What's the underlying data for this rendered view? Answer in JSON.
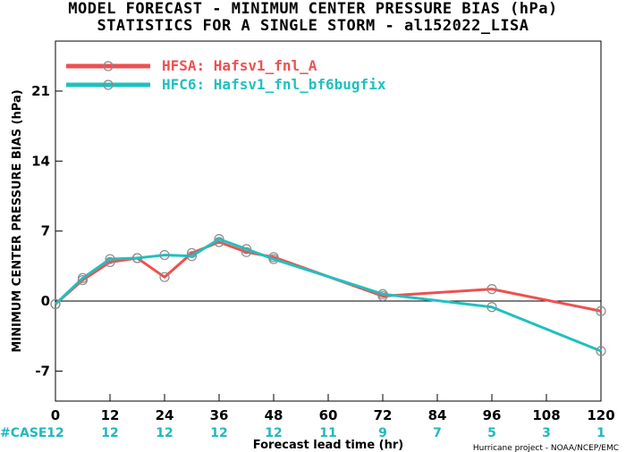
{
  "chart_data": {
    "type": "line",
    "title": "MODEL FORECAST - MINIMUM CENTER PRESSURE BIAS (hPa)",
    "subtitle": "STATISTICS FOR A SINGLE STORM - al152022_LISA",
    "xlabel": "Forecast lead time (hr)",
    "ylabel": "MINIMUM CENTER PRESSURE BIAS (hPa)",
    "xlim": [
      0,
      120
    ],
    "ylim": [
      -10,
      26
    ],
    "x_ticks": [
      0,
      12,
      24,
      36,
      48,
      60,
      72,
      84,
      96,
      108,
      120
    ],
    "y_ticks": [
      -7,
      0,
      7,
      14,
      21
    ],
    "grid": false,
    "legend_position": "top-left",
    "series": [
      {
        "name": "HFSA: Hafsv1_fnl_A",
        "color": "#ee5050",
        "x": [
          0,
          6,
          12,
          18,
          24,
          30,
          36,
          42,
          48,
          72,
          96,
          120
        ],
        "y": [
          -0.3,
          2.1,
          3.9,
          4.3,
          2.4,
          4.8,
          5.9,
          4.9,
          4.4,
          0.5,
          1.2,
          -1.0
        ]
      },
      {
        "name": "HFC6: Hafsv1_fnl_bf6bugfix",
        "color": "#20c0c0",
        "x": [
          0,
          6,
          12,
          18,
          24,
          30,
          36,
          42,
          48,
          72,
          96,
          120
        ],
        "y": [
          -0.3,
          2.3,
          4.2,
          4.3,
          4.6,
          4.5,
          6.2,
          5.2,
          4.2,
          0.7,
          -0.6,
          -5.0
        ]
      }
    ],
    "case_label": "#CASE",
    "case_counts": [
      {
        "x": 0,
        "n": "12"
      },
      {
        "x": 12,
        "n": "12"
      },
      {
        "x": 24,
        "n": "12"
      },
      {
        "x": 36,
        "n": "12"
      },
      {
        "x": 48,
        "n": "12"
      },
      {
        "x": 60,
        "n": "11"
      },
      {
        "x": 72,
        "n": "9"
      },
      {
        "x": 84,
        "n": "7"
      },
      {
        "x": 96,
        "n": "5"
      },
      {
        "x": 108,
        "n": "3"
      },
      {
        "x": 120,
        "n": "1"
      }
    ],
    "credit": "Hurricane project - NOAA/NCEP/EMC"
  }
}
